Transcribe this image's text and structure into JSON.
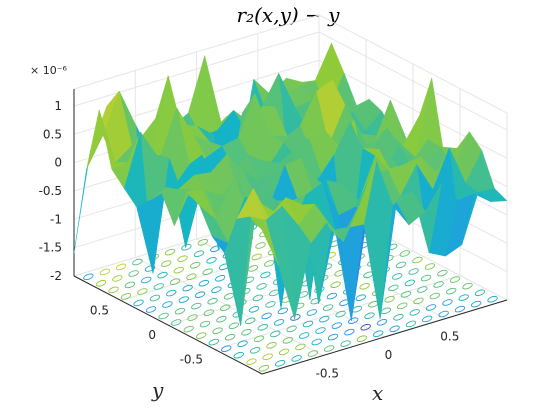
{
  "chart_data": {
    "type": "surface3d",
    "title": "r₂(x,y) − y",
    "xlabel": "x",
    "ylabel": "y",
    "zlabel": "",
    "z_exponent_label": "× 10⁻⁶",
    "xlim": [
      -1,
      1
    ],
    "ylim": [
      -1,
      1
    ],
    "zlim": [
      -2,
      1.3
    ],
    "x_ticks": [
      -0.5,
      0,
      0.5
    ],
    "y_ticks": [
      -0.5,
      0,
      0.5
    ],
    "z_ticks": [
      -2,
      -1.5,
      -1,
      -0.5,
      0,
      0.5,
      1
    ],
    "x_tick_labels": [
      "-0.5",
      "0",
      "0.5"
    ],
    "y_tick_labels": [
      "-0.5",
      "0",
      "0.5"
    ],
    "z_tick_labels": [
      "-2",
      "-1.5",
      "-1",
      "-0.5",
      "0",
      "0.5",
      "1"
    ],
    "grid": true,
    "contour_projection": true,
    "colormap": "parula",
    "colors": {
      "low": "#3e26a8",
      "mid": "#13b5c6",
      "high": "#f9d52d"
    },
    "grid_size": 15,
    "z_units_scale": 1e-06
  }
}
